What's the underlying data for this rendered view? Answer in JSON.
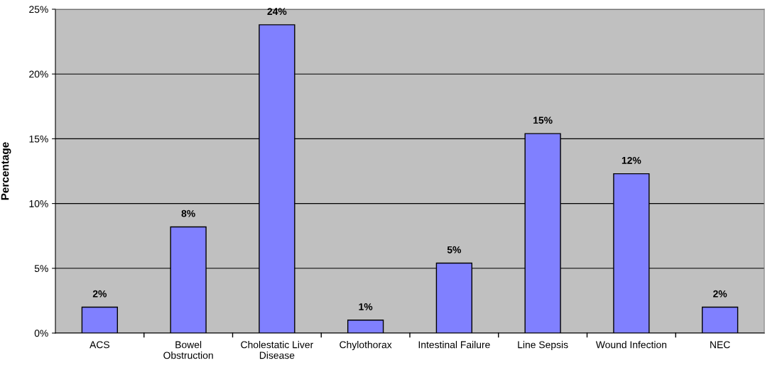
{
  "chart_data": {
    "type": "bar",
    "ylabel": "Percentage",
    "categories": [
      "ACS",
      "Bowel\nObstruction",
      "Cholestatic Liver\nDisease",
      "Chylothorax",
      "Intestinal Failure",
      "Line Sepsis",
      "Wound Infection",
      "NEC"
    ],
    "values": [
      2.0,
      8.2,
      23.8,
      1.0,
      5.4,
      15.4,
      12.3,
      2.0
    ],
    "value_labels": [
      "2%",
      "8%",
      "24%",
      "1%",
      "5%",
      "15%",
      "12%",
      "2%"
    ],
    "color": "#8080ff",
    "ylim": [
      0,
      25
    ],
    "yticks": [
      {
        "value": 0,
        "label": "0%"
      },
      {
        "value": 5,
        "label": "5%"
      },
      {
        "value": 10,
        "label": "10%"
      },
      {
        "value": 15,
        "label": "15%"
      },
      {
        "value": 20,
        "label": "20%"
      },
      {
        "value": 25,
        "label": "25%"
      }
    ],
    "grid": "y",
    "legend": false
  }
}
